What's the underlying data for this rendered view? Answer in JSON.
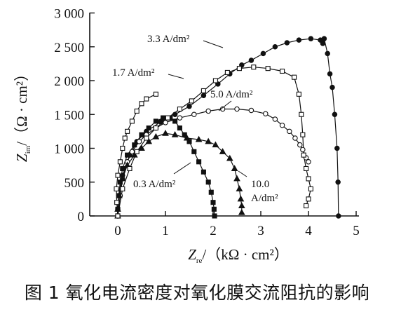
{
  "caption": "图 1 氧化电流密度对氧化膜交流阻抗的影响",
  "chart_data": {
    "type": "scatter",
    "title": "",
    "xlabel": {
      "symbol": "Z",
      "sub": "re",
      "unit": "/（kΩ · cm²）"
    },
    "ylabel": {
      "symbol": "Z",
      "sub": "im",
      "unit": "/（Ω · cm²）"
    },
    "xlim": [
      -0.3,
      5
    ],
    "ylim": [
      0,
      3000
    ],
    "xticks": [
      0,
      1,
      2,
      3,
      4,
      5
    ],
    "xtick_labels": [
      "0",
      "1",
      "2",
      "3",
      "4",
      "5"
    ],
    "yticks": [
      0,
      500,
      1000,
      1500,
      2000,
      2500,
      3000
    ],
    "ytick_labels": [
      "0",
      "500",
      "1 000",
      "1 500",
      "2 000",
      "2 500",
      "3 000"
    ],
    "grid": false,
    "series": [
      {
        "name": "3.3 A/dm²",
        "marker": "circle-filled",
        "points": [
          [
            0.0,
            0
          ],
          [
            0.0,
            100
          ],
          [
            0.02,
            300
          ],
          [
            0.1,
            600
          ],
          [
            0.25,
            900
          ],
          [
            0.4,
            1100
          ],
          [
            0.6,
            1250
          ],
          [
            0.9,
            1390
          ],
          [
            1.2,
            1500
          ],
          [
            1.5,
            1620
          ],
          [
            1.8,
            1780
          ],
          [
            2.1,
            1950
          ],
          [
            2.35,
            2100
          ],
          [
            2.6,
            2230
          ],
          [
            2.8,
            2300
          ],
          [
            3.05,
            2400
          ],
          [
            3.3,
            2500
          ],
          [
            3.55,
            2560
          ],
          [
            3.8,
            2600
          ],
          [
            4.05,
            2620
          ],
          [
            4.25,
            2600
          ],
          [
            4.3,
            2550
          ],
          [
            4.33,
            2620
          ],
          [
            4.4,
            2400
          ],
          [
            4.45,
            2100
          ],
          [
            4.5,
            1900
          ],
          [
            4.55,
            1500
          ],
          [
            4.6,
            1000
          ],
          [
            4.62,
            500
          ],
          [
            4.63,
            0
          ]
        ]
      },
      {
        "name": "1.7 A/dm²",
        "marker": "square-open",
        "points": [
          [
            0.0,
            0
          ],
          [
            -0.02,
            200
          ],
          [
            -0.03,
            400
          ],
          [
            0.0,
            600
          ],
          [
            0.05,
            800
          ],
          [
            0.1,
            1000
          ],
          [
            0.15,
            1150
          ],
          [
            0.2,
            1250
          ],
          [
            0.3,
            1400
          ],
          [
            0.4,
            1550
          ],
          [
            0.5,
            1660
          ],
          [
            0.6,
            1730
          ],
          [
            0.8,
            1800
          ]
        ]
      },
      {
        "name": "5.0 A/dm²",
        "marker": "circle-open",
        "points": [
          [
            0.0,
            0
          ],
          [
            0.05,
            300
          ],
          [
            0.1,
            550
          ],
          [
            0.2,
            800
          ],
          [
            0.3,
            950
          ],
          [
            0.45,
            1100
          ],
          [
            0.6,
            1200
          ],
          [
            0.8,
            1300
          ],
          [
            1.0,
            1380
          ],
          [
            1.3,
            1450
          ],
          [
            1.6,
            1500
          ],
          [
            1.9,
            1550
          ],
          [
            2.2,
            1580
          ],
          [
            2.5,
            1580
          ],
          [
            2.8,
            1560
          ],
          [
            3.1,
            1510
          ],
          [
            3.3,
            1430
          ],
          [
            3.45,
            1340
          ],
          [
            3.6,
            1250
          ],
          [
            3.72,
            1150
          ],
          [
            3.82,
            1050
          ],
          [
            3.88,
            980
          ],
          [
            3.95,
            860
          ],
          [
            4.0,
            800
          ]
        ]
      },
      {
        "name": "0.3 A/dm²",
        "marker": "square-filled",
        "points": [
          [
            0.0,
            0
          ],
          [
            0.0,
            100
          ],
          [
            0.02,
            300
          ],
          [
            0.05,
            500
          ],
          [
            0.1,
            700
          ],
          [
            0.2,
            900
          ],
          [
            0.35,
            1050
          ],
          [
            0.5,
            1200
          ],
          [
            0.65,
            1300
          ],
          [
            0.8,
            1400
          ],
          [
            0.95,
            1450
          ],
          [
            1.1,
            1450
          ],
          [
            1.2,
            1400
          ],
          [
            1.3,
            1300
          ],
          [
            1.4,
            1200
          ],
          [
            1.5,
            1100
          ],
          [
            1.6,
            950
          ],
          [
            1.7,
            800
          ],
          [
            1.8,
            650
          ],
          [
            1.9,
            500
          ],
          [
            1.96,
            350
          ],
          [
            2.0,
            200
          ],
          [
            2.02,
            100
          ],
          [
            2.03,
            0
          ]
        ]
      },
      {
        "name": "10.0 A/dm²",
        "marker": "triangle-filled",
        "points": [
          [
            0.0,
            0
          ],
          [
            0.0,
            100
          ],
          [
            0.03,
            300
          ],
          [
            0.1,
            550
          ],
          [
            0.2,
            750
          ],
          [
            0.35,
            900
          ],
          [
            0.5,
            1000
          ],
          [
            0.65,
            1100
          ],
          [
            0.8,
            1170
          ],
          [
            1.0,
            1220
          ],
          [
            1.2,
            1200
          ],
          [
            1.45,
            1150
          ],
          [
            1.7,
            1130
          ],
          [
            1.9,
            1100
          ],
          [
            2.05,
            1050
          ],
          [
            2.2,
            950
          ],
          [
            2.35,
            850
          ],
          [
            2.45,
            700
          ],
          [
            2.5,
            550
          ],
          [
            2.55,
            400
          ],
          [
            2.58,
            250
          ],
          [
            2.6,
            150
          ],
          [
            2.6,
            50
          ]
        ]
      },
      {
        "name": "",
        "marker": "square-open",
        "points": [
          [
            0.0,
            0
          ],
          [
            0.1,
            400
          ],
          [
            0.25,
            700
          ],
          [
            0.4,
            950
          ],
          [
            0.6,
            1150
          ],
          [
            0.8,
            1300
          ],
          [
            1.05,
            1450
          ],
          [
            1.3,
            1580
          ],
          [
            1.55,
            1700
          ],
          [
            1.8,
            1850
          ],
          [
            2.05,
            2000
          ],
          [
            2.3,
            2120
          ],
          [
            2.55,
            2180
          ],
          [
            2.85,
            2200
          ],
          [
            3.15,
            2180
          ],
          [
            3.45,
            2140
          ],
          [
            3.7,
            2050
          ],
          [
            3.8,
            1800
          ],
          [
            3.85,
            1500
          ],
          [
            3.88,
            1200
          ],
          [
            3.9,
            900
          ],
          [
            3.95,
            700
          ],
          [
            4.0,
            550
          ],
          [
            4.05,
            400
          ],
          [
            4.0,
            250
          ],
          [
            3.95,
            150
          ]
        ]
      }
    ],
    "annotations": [
      {
        "text": "3.3 A/dm²",
        "series": 0
      },
      {
        "text": "1.7 A/dm²",
        "series": 1
      },
      {
        "text": "5.0 A/dm²",
        "series": 2
      },
      {
        "text": "0.3 A/dm²",
        "series": 3
      },
      {
        "text": "10.0",
        "series": 4
      },
      {
        "text": "A/dm²",
        "series": 4
      }
    ]
  }
}
